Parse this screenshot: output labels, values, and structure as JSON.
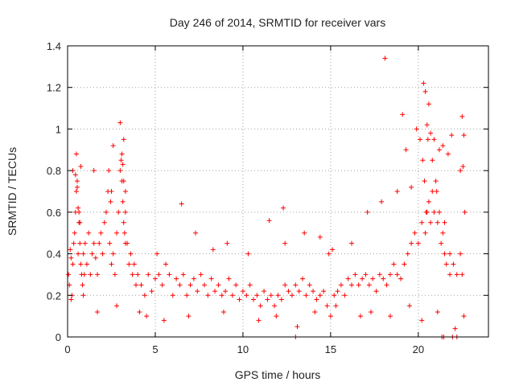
{
  "chart_data": {
    "type": "scatter",
    "title": "Day 246 of 2014, SRMTID for receiver vars",
    "xlabel": "GPS time / hours",
    "ylabel": "SRMTID / TECUs",
    "xlim": [
      0,
      24
    ],
    "ylim": [
      0,
      1.4
    ],
    "xticks": [
      0,
      5,
      10,
      15,
      20
    ],
    "xtick_labels": [
      "0",
      "5",
      "10",
      "15",
      "20"
    ],
    "yticks": [
      0,
      0.2,
      0.4,
      0.6,
      0.8,
      1,
      1.2,
      1.4
    ],
    "ytick_labels": [
      "0",
      "0.2",
      "0.4",
      "0.6",
      "0.8",
      "1",
      "1.2",
      "1.4"
    ],
    "grid": true,
    "marker": "+",
    "color": "#ff0000",
    "series": [
      {
        "name": "SRMTID",
        "note": "dense scatter; representative sample of the depicted points",
        "x": [
          0.05,
          0.1,
          0.15,
          0.2,
          0.25,
          0.3,
          0.35,
          0.4,
          0.45,
          0.5,
          0.55,
          0.6,
          0.65,
          0.7,
          0.75,
          0.8,
          0.85,
          0.9,
          0.95,
          1.0,
          1.1,
          1.2,
          1.3,
          1.4,
          1.5,
          1.6,
          1.7,
          1.8,
          1.9,
          2.0,
          2.1,
          2.2,
          2.3,
          2.4,
          2.5,
          2.6,
          2.7,
          2.8,
          2.9,
          3.0,
          3.05,
          3.1,
          3.15,
          3.2,
          3.25,
          3.3,
          3.4,
          3.5,
          3.6,
          3.7,
          3.8,
          3.9,
          4.0,
          4.2,
          4.4,
          4.6,
          4.8,
          5.0,
          5.2,
          5.4,
          5.6,
          5.8,
          6.0,
          6.2,
          6.4,
          6.6,
          6.8,
          7.0,
          7.2,
          7.4,
          7.6,
          7.8,
          8.0,
          8.2,
          8.4,
          8.6,
          8.8,
          9.0,
          9.2,
          9.4,
          9.6,
          9.8,
          10.0,
          10.2,
          10.4,
          10.6,
          10.8,
          11.0,
          11.2,
          11.4,
          11.6,
          11.8,
          12.0,
          12.2,
          12.4,
          12.6,
          12.8,
          13.0,
          13.2,
          13.4,
          13.6,
          13.8,
          14.0,
          14.2,
          14.4,
          14.6,
          14.8,
          15.0,
          15.2,
          15.4,
          15.6,
          15.8,
          16.0,
          16.2,
          16.4,
          16.6,
          16.8,
          17.0,
          17.2,
          17.4,
          17.6,
          17.8,
          18.0,
          18.2,
          18.4,
          18.6,
          18.8,
          19.0,
          19.2,
          19.4,
          19.6,
          19.8,
          20.0,
          20.2,
          20.4,
          20.5,
          20.6,
          20.7,
          20.8,
          20.9,
          21.0,
          21.1,
          21.2,
          21.3,
          21.4,
          21.5,
          21.6,
          21.8,
          22.0,
          22.2,
          22.4,
          22.5,
          22.6,
          0.3,
          0.5,
          0.6,
          0.7,
          1.5,
          2.5,
          2.6,
          3.0,
          3.2,
          3.3,
          4.1,
          5.1,
          6.5,
          7.3,
          8.3,
          9.1,
          10.3,
          11.5,
          12.3,
          12.4,
          13.5,
          14.4,
          14.9,
          15.1,
          16.2,
          17.1,
          17.9,
          18.1,
          18.8,
          19.1,
          19.3,
          19.6,
          19.9,
          20.1,
          20.3,
          20.4,
          20.5,
          20.6,
          20.7,
          20.9,
          21.2,
          21.4,
          21.7,
          21.9,
          22.4,
          22.5,
          22.6,
          0.2,
          0.9,
          1.7,
          2.8,
          4.5,
          5.5,
          6.9,
          8.9,
          10.9,
          11.9,
          13.1,
          14.1,
          15.3,
          16.7,
          17.3,
          18.4,
          19.5,
          20.2,
          21.1,
          22.1,
          21.35,
          21.45,
          21.95,
          22.2,
          13.0,
          0.45,
          0.55,
          0.65,
          0.75,
          2.35,
          2.45,
          3.1,
          3.15,
          3.2,
          3.3,
          20.25,
          20.35,
          20.45,
          20.55,
          20.8,
          21.05,
          21.5,
          21.8,
          22.55,
          22.65
        ],
        "y": [
          0.3,
          0.25,
          0.42,
          0.38,
          0.2,
          0.35,
          0.45,
          0.5,
          0.6,
          0.7,
          0.75,
          0.4,
          0.55,
          0.45,
          0.35,
          0.3,
          0.25,
          0.4,
          0.3,
          0.45,
          0.35,
          0.5,
          0.3,
          0.4,
          0.45,
          0.38,
          0.3,
          0.45,
          0.5,
          0.4,
          0.55,
          0.6,
          0.7,
          0.45,
          0.35,
          0.4,
          0.3,
          0.5,
          0.6,
          0.8,
          0.85,
          0.75,
          0.65,
          0.55,
          0.5,
          0.6,
          0.45,
          0.35,
          0.4,
          0.3,
          0.35,
          0.25,
          0.3,
          0.25,
          0.2,
          0.3,
          0.22,
          0.28,
          0.3,
          0.25,
          0.35,
          0.3,
          0.2,
          0.28,
          0.25,
          0.3,
          0.2,
          0.25,
          0.28,
          0.22,
          0.3,
          0.25,
          0.2,
          0.28,
          0.22,
          0.25,
          0.2,
          0.22,
          0.28,
          0.2,
          0.25,
          0.18,
          0.22,
          0.2,
          0.25,
          0.18,
          0.2,
          0.15,
          0.22,
          0.18,
          0.2,
          0.15,
          0.2,
          0.18,
          0.25,
          0.22,
          0.2,
          0.25,
          0.22,
          0.28,
          0.2,
          0.25,
          0.22,
          0.18,
          0.2,
          0.22,
          0.15,
          0.1,
          0.2,
          0.22,
          0.25,
          0.2,
          0.28,
          0.25,
          0.3,
          0.25,
          0.28,
          0.3,
          0.25,
          0.28,
          0.22,
          0.3,
          0.28,
          0.25,
          0.3,
          0.35,
          0.3,
          0.28,
          0.35,
          0.4,
          0.45,
          0.5,
          0.45,
          0.55,
          0.5,
          0.6,
          0.65,
          0.55,
          0.7,
          0.6,
          0.75,
          0.55,
          0.6,
          0.45,
          0.5,
          0.4,
          0.35,
          0.3,
          0.35,
          0.3,
          0.4,
          0.3,
          0.97,
          0.8,
          0.88,
          0.62,
          0.55,
          0.8,
          0.7,
          0.92,
          1.03,
          0.95,
          0.45,
          0.12,
          0.4,
          0.64,
          0.5,
          0.42,
          0.45,
          0.4,
          0.56,
          0.62,
          0.45,
          0.5,
          0.48,
          0.4,
          0.42,
          0.45,
          0.6,
          0.65,
          1.34,
          0.7,
          1.07,
          0.9,
          0.72,
          1.0,
          0.95,
          1.22,
          1.18,
          1.02,
          1.12,
          0.98,
          0.95,
          0.9,
          0.92,
          0.88,
          0.97,
          0.8,
          1.06,
          0.1,
          0.18,
          0.2,
          0.12,
          0.15,
          0.1,
          0.08,
          0.1,
          0.12,
          0.08,
          0.1,
          0.05,
          0.12,
          0.15,
          0.1,
          0.12,
          0.1,
          0.15,
          0.08,
          0.12,
          0.04,
          0.0,
          0.0,
          0.0,
          0.0,
          0.0,
          0.78,
          0.72,
          0.6,
          0.82,
          0.8,
          0.65,
          0.88,
          0.83,
          0.75,
          0.7,
          0.85,
          0.75,
          0.6,
          0.95,
          0.85,
          0.7,
          0.55,
          0.4,
          0.82,
          0.6
        ]
      }
    ]
  }
}
